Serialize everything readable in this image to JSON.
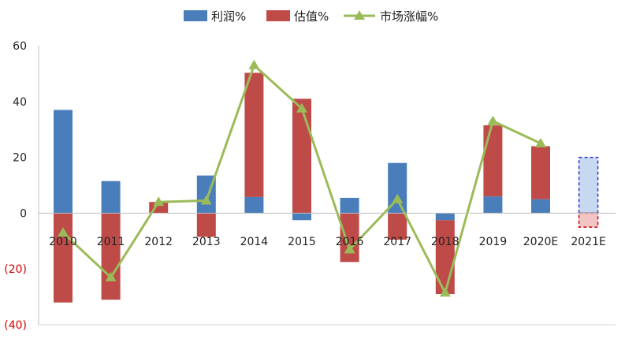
{
  "chart_data": {
    "type": "bar",
    "subtype": "stacked bar with line overlay",
    "categories": [
      "2010",
      "2011",
      "2012",
      "2013",
      "2014",
      "2015",
      "2016",
      "2017",
      "2018",
      "2019",
      "2020E",
      "2021E"
    ],
    "series": [
      {
        "name": "利润%",
        "type": "bar",
        "color": "#4a7ebb",
        "values": [
          37,
          11.5,
          0,
          13.5,
          5.8,
          -2.5,
          5.5,
          18,
          -2.5,
          6,
          5,
          20
        ]
      },
      {
        "name": "估值%",
        "type": "bar",
        "color": "#be4b48",
        "values": [
          -32,
          -31,
          4,
          -8.5,
          44.5,
          41,
          -17.5,
          -9.5,
          -26.5,
          25.5,
          19,
          -5
        ]
      },
      {
        "name": "市场涨幅%",
        "type": "line",
        "marker": "triangle",
        "color": "#9bbb59",
        "values": [
          -7,
          -23,
          4,
          4.5,
          53,
          37.5,
          -13,
          5,
          -28.5,
          33,
          25,
          null
        ]
      }
    ],
    "yticks": [
      "60",
      "40",
      "20",
      "0",
      "(20)",
      "(40)"
    ],
    "ylim": [
      -40,
      60
    ],
    "legend_position": "top",
    "estimate_style": {
      "category": "2021E",
      "positive_fill": "#c6d9f0",
      "negative_fill": "#f2c4c4",
      "border": "dashed"
    },
    "grid": false
  }
}
